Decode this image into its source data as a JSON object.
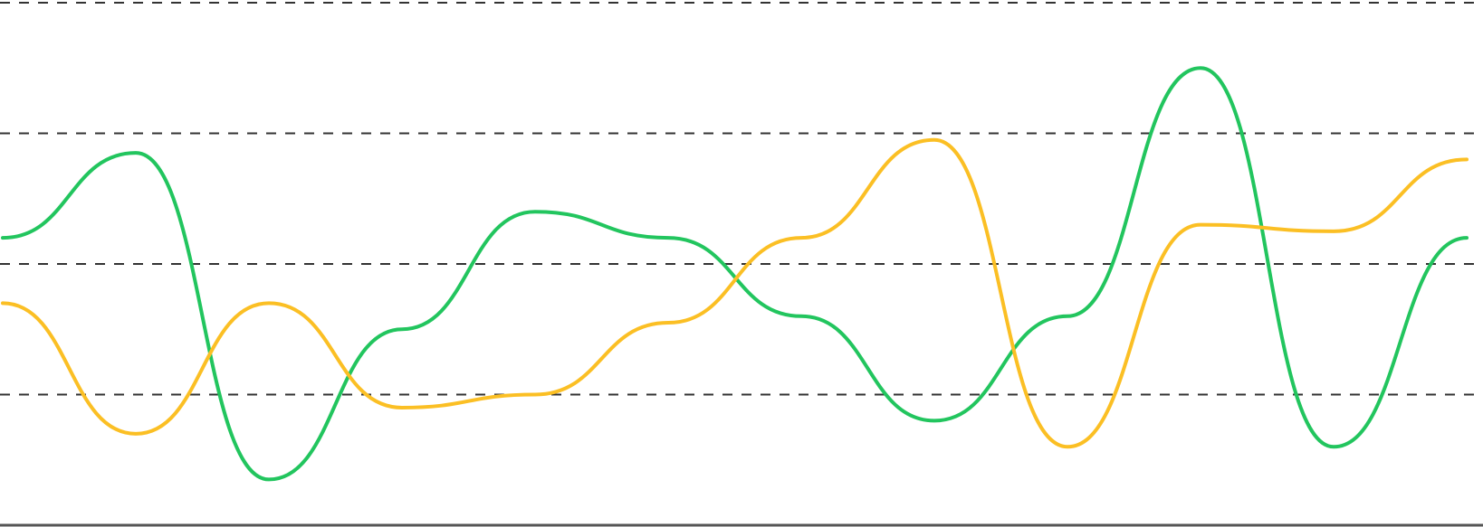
{
  "chart_data": {
    "type": "line",
    "title": "",
    "xlabel": "",
    "ylabel": "",
    "x": [
      0,
      1,
      2,
      3,
      4,
      5,
      6,
      7,
      8,
      9,
      10,
      11
    ],
    "ylim": [
      0,
      4
    ],
    "grid": true,
    "series": [
      {
        "color": "#22c55e",
        "values": [
          2.2,
          2.85,
          0.35,
          1.5,
          2.4,
          2.2,
          1.6,
          0.8,
          1.6,
          3.5,
          0.6,
          2.2
        ]
      },
      {
        "color": "#fbbf24",
        "values": [
          1.7,
          0.7,
          1.7,
          0.9,
          1.0,
          1.55,
          2.2,
          2.95,
          0.6,
          2.3,
          2.25,
          2.8
        ]
      }
    ]
  }
}
